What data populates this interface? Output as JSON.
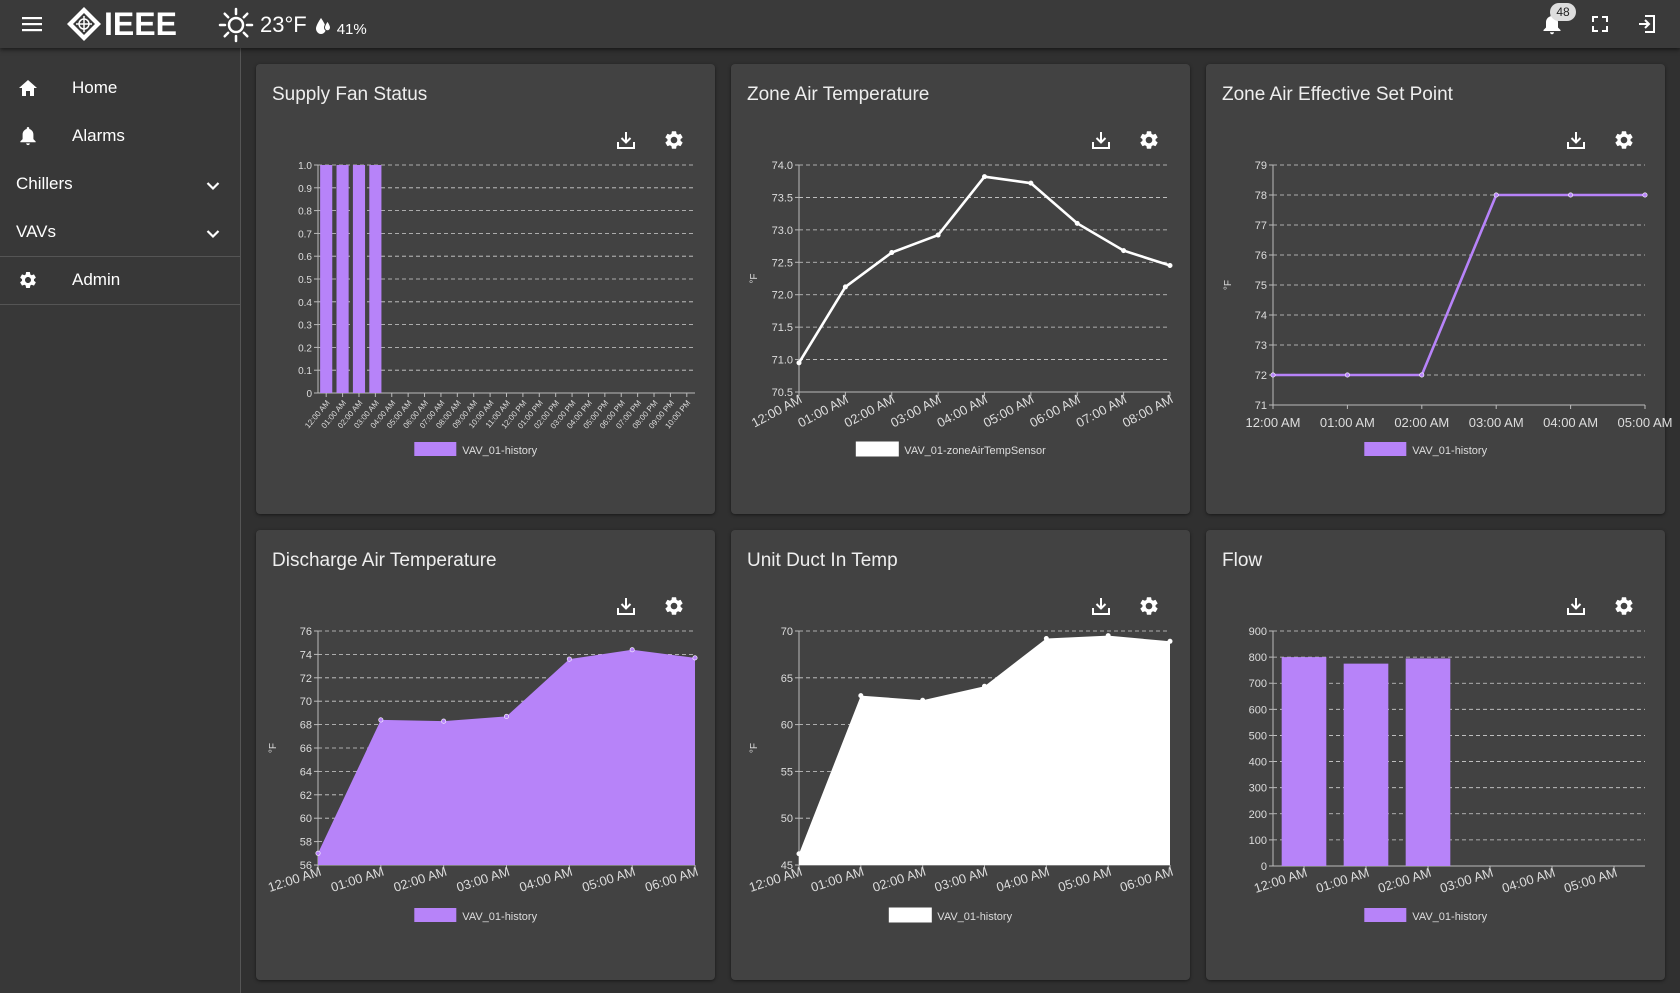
{
  "header": {
    "menu_icon": "menu-icon",
    "logo_text": "IEEE",
    "weather": {
      "icon": "sun-icon",
      "temperature": "23°F",
      "humidity": "41%"
    },
    "notifications": {
      "icon": "bell-icon",
      "count": "48"
    },
    "fullscreen_icon": "fullscreen-icon",
    "logout_icon": "logout-icon"
  },
  "sidebar": {
    "items": [
      {
        "label": "Home",
        "icon": "home-icon"
      },
      {
        "label": "Alarms",
        "icon": "bell-icon"
      },
      {
        "label": "Chillers",
        "icon": "chevron-down-icon"
      },
      {
        "label": "VAVs",
        "icon": "chevron-down-icon"
      },
      {
        "label": "Admin",
        "icon": "gear-icon"
      }
    ]
  },
  "colors": {
    "purple": "#b783f9",
    "white": "#ffffff",
    "card_bg": "#424242",
    "page_bg": "#303030"
  },
  "cards": [
    {
      "title": "Supply Fan Status",
      "download_icon": "download-icon",
      "settings_icon": "gear-icon"
    },
    {
      "title": "Zone Air Temperature",
      "download_icon": "download-icon",
      "settings_icon": "gear-icon"
    },
    {
      "title": "Zone Air Effective Set Point",
      "download_icon": "download-icon",
      "settings_icon": "gear-icon"
    },
    {
      "title": "Discharge Air Temperature",
      "download_icon": "download-icon",
      "settings_icon": "gear-icon"
    },
    {
      "title": "Unit Duct In Temp",
      "download_icon": "download-icon",
      "settings_icon": "gear-icon"
    },
    {
      "title": "Flow",
      "download_icon": "download-icon",
      "settings_icon": "gear-icon"
    }
  ],
  "chart_data": [
    {
      "type": "bar",
      "title": "Supply Fan Status",
      "ylabel": "",
      "ylim": [
        0,
        1
      ],
      "yticks": [
        "0",
        "0.1",
        "0.2",
        "0.3",
        "0.4",
        "0.5",
        "0.6",
        "0.7",
        "0.8",
        "0.9",
        "1.0"
      ],
      "categories": [
        "12:00 AM",
        "01:00 AM",
        "02:00 AM",
        "03:00 AM",
        "04:00 AM",
        "05:00 AM",
        "06:00 AM",
        "07:00 AM",
        "08:00 AM",
        "09:00 AM",
        "10:00 AM",
        "11:00 AM",
        "12:00 PM",
        "01:00 PM",
        "02:00 PM",
        "03:00 PM",
        "04:00 PM",
        "05:00 PM",
        "06:00 PM",
        "07:00 PM",
        "08:00 PM",
        "09:00 PM",
        "10:00 PM"
      ],
      "series": [
        {
          "name": "VAV_01-history",
          "color": "#b783f9",
          "values": [
            1,
            1,
            1,
            1,
            0,
            0,
            0,
            0,
            0,
            0,
            0,
            0,
            0,
            0,
            0,
            0,
            0,
            0,
            0,
            0,
            0,
            0,
            0
          ]
        }
      ],
      "grid": true,
      "legend": "bottom"
    },
    {
      "type": "line",
      "title": "Zone Air Temperature",
      "ylabel": "°F",
      "ylim": [
        70.5,
        74.0
      ],
      "yticks": [
        "70.5",
        "71.0",
        "71.5",
        "72.0",
        "72.5",
        "73.0",
        "73.5",
        "74.0"
      ],
      "categories": [
        "12:00 AM",
        "01:00 AM",
        "02:00 AM",
        "03:00 AM",
        "04:00 AM",
        "05:00 AM",
        "06:00 AM",
        "07:00 AM",
        "08:00 AM"
      ],
      "x": [
        0,
        1,
        2,
        3,
        4,
        5,
        6,
        7,
        8
      ],
      "series": [
        {
          "name": "VAV_01-zoneAirTempSensor",
          "color": "#ffffff",
          "values": [
            70.95,
            72.12,
            72.65,
            72.92,
            73.82,
            73.72,
            73.1,
            72.68,
            72.45
          ]
        }
      ],
      "grid": true,
      "legend": "bottom"
    },
    {
      "type": "line",
      "title": "Zone Air Effective Set Point",
      "ylabel": "°F",
      "ylim": [
        71,
        79
      ],
      "yticks": [
        "71",
        "72",
        "73",
        "74",
        "75",
        "76",
        "77",
        "78",
        "79"
      ],
      "categories": [
        "12:00 AM",
        "01:00 AM",
        "02:00 AM",
        "03:00 AM",
        "04:00 AM",
        "05:00 AM"
      ],
      "x": [
        0,
        1,
        2,
        3,
        4,
        5
      ],
      "series": [
        {
          "name": "VAV_01-history",
          "color": "#b783f9",
          "values": [
            72,
            72,
            72,
            78,
            78,
            78
          ]
        }
      ],
      "grid": true,
      "legend": "bottom"
    },
    {
      "type": "area",
      "title": "Discharge Air Temperature",
      "ylabel": "°F",
      "ylim": [
        56,
        76
      ],
      "yticks": [
        "56",
        "58",
        "60",
        "62",
        "64",
        "66",
        "68",
        "70",
        "72",
        "74",
        "76"
      ],
      "categories": [
        "12:00 AM",
        "01:00 AM",
        "02:00 AM",
        "03:00 AM",
        "04:00 AM",
        "05:00 AM",
        "06:00 AM"
      ],
      "x": [
        0,
        1,
        2,
        3,
        4,
        5,
        6
      ],
      "series": [
        {
          "name": "VAV_01-history",
          "color": "#b783f9",
          "values": [
            57,
            68.4,
            68.3,
            68.7,
            73.6,
            74.4,
            73.7
          ]
        }
      ],
      "grid": true,
      "legend": "bottom"
    },
    {
      "type": "area",
      "title": "Unit Duct In Temp",
      "ylabel": "°F",
      "ylim": [
        45,
        70
      ],
      "yticks": [
        "45",
        "50",
        "55",
        "60",
        "65",
        "70"
      ],
      "categories": [
        "12:00 AM",
        "01:00 AM",
        "02:00 AM",
        "03:00 AM",
        "04:00 AM",
        "05:00 AM",
        "06:00 AM"
      ],
      "x": [
        0,
        1,
        2,
        3,
        4,
        5,
        6
      ],
      "series": [
        {
          "name": "VAV_01-history",
          "color": "#ffffff",
          "values": [
            46.2,
            63.1,
            62.6,
            64.1,
            69.2,
            69.5,
            68.9
          ]
        }
      ],
      "grid": true,
      "legend": "bottom"
    },
    {
      "type": "bar",
      "title": "Flow",
      "ylabel": "",
      "ylim": [
        0,
        900
      ],
      "yticks": [
        "0",
        "100",
        "200",
        "300",
        "400",
        "500",
        "600",
        "700",
        "800",
        "900"
      ],
      "categories": [
        "12:00 AM",
        "01:00 AM",
        "02:00 AM",
        "03:00 AM",
        "04:00 AM",
        "05:00 AM"
      ],
      "series": [
        {
          "name": "VAV_01-history",
          "color": "#b783f9",
          "values": [
            800,
            775,
            795,
            0,
            0,
            0
          ]
        }
      ],
      "grid": true,
      "legend": "bottom"
    }
  ]
}
